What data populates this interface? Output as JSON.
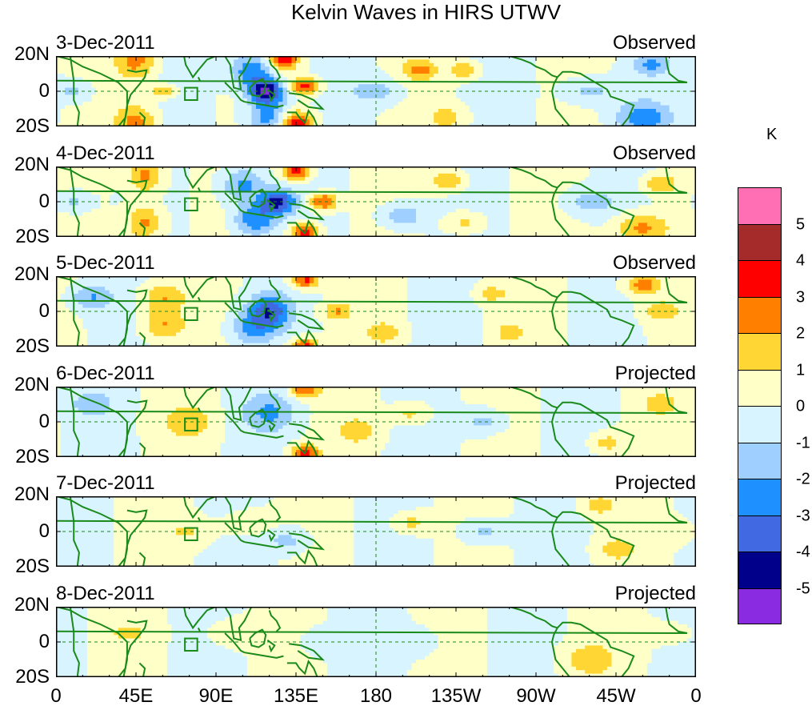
{
  "chart_data": {
    "type": "heatmap",
    "title": "Kelvin Waves in HIRS UTWV",
    "x_tick_labels": [
      "0",
      "45E",
      "90E",
      "135E",
      "180",
      "135W",
      "90W",
      "45W",
      "0"
    ],
    "y_tick_labels": [
      "20N",
      "0",
      "20S"
    ],
    "xlim": [
      0,
      360
    ],
    "ylim": [
      -20,
      20
    ],
    "colorbar": {
      "unit": "K",
      "tick_labels": [
        "5",
        "4",
        "3",
        "2",
        "1",
        "0",
        "-1",
        "-2",
        "-3",
        "-4",
        "-5"
      ],
      "colors": [
        "#ff6fb4",
        "#a52a2a",
        "#ff0000",
        "#ff7f00",
        "#ffd633",
        "#ffffc8",
        "#d8f4ff",
        "#9fcfff",
        "#1e90ff",
        "#4169e1",
        "#00008b",
        "#8a2be2"
      ]
    },
    "panels": [
      {
        "date": "3-Dec-2011",
        "status": "Observed",
        "blobs": [
          [
            45,
            18,
            11,
            2.5,
            1
          ],
          [
            45,
            -18,
            11,
            2.5,
            0.9
          ],
          [
            60,
            0,
            8,
            1.8,
            0.5
          ],
          [
            110,
            12,
            12,
            -3,
            0.8
          ],
          [
            118,
            0,
            10,
            -5,
            0.7
          ],
          [
            120,
            -15,
            12,
            -3,
            0.8
          ],
          [
            128,
            18,
            8,
            4,
            0.7
          ],
          [
            135,
            -18,
            10,
            4,
            0.7
          ],
          [
            140,
            3,
            8,
            3.5,
            0.6
          ],
          [
            180,
            0,
            15,
            -1.5,
            0.5
          ],
          [
            205,
            12,
            10,
            2,
            0.6
          ],
          [
            230,
            12,
            8,
            2,
            0.6
          ],
          [
            220,
            -15,
            10,
            1.5,
            0.6
          ],
          [
            300,
            0,
            15,
            -1.5,
            0.5
          ],
          [
            330,
            -15,
            15,
            -2.5,
            0.6
          ],
          [
            335,
            15,
            10,
            -2,
            0.6
          ],
          [
            10,
            0,
            10,
            -1.5,
            0.6
          ]
        ]
      },
      {
        "date": "4-Dec-2011",
        "status": "Observed",
        "blobs": [
          [
            50,
            15,
            10,
            2.5,
            1
          ],
          [
            50,
            -12,
            10,
            2.5,
            1
          ],
          [
            10,
            0,
            10,
            -1.5,
            0.6
          ],
          [
            105,
            10,
            12,
            -2.5,
            0.8
          ],
          [
            112,
            -10,
            12,
            -3,
            0.8
          ],
          [
            125,
            0,
            10,
            -4,
            0.7
          ],
          [
            135,
            18,
            8,
            4,
            0.7
          ],
          [
            140,
            -18,
            8,
            4,
            0.7
          ],
          [
            150,
            0,
            8,
            3.5,
            0.6
          ],
          [
            195,
            -8,
            12,
            -2,
            0.6
          ],
          [
            220,
            12,
            10,
            2,
            0.6
          ],
          [
            230,
            -12,
            10,
            1.5,
            0.6
          ],
          [
            300,
            0,
            15,
            -1.5,
            0.5
          ],
          [
            330,
            -15,
            15,
            2.5,
            0.6
          ],
          [
            340,
            10,
            10,
            2,
            0.6
          ]
        ]
      },
      {
        "date": "5-Dec-2011",
        "status": "Observed",
        "blobs": [
          [
            20,
            8,
            12,
            -2,
            0.6
          ],
          [
            60,
            8,
            12,
            2,
            0.7
          ],
          [
            60,
            -8,
            12,
            2,
            0.7
          ],
          [
            120,
            0,
            12,
            -3.5,
            0.8
          ],
          [
            110,
            -10,
            12,
            -2,
            0.8
          ],
          [
            140,
            18,
            8,
            3.5,
            0.6
          ],
          [
            140,
            -20,
            8,
            3.5,
            0.6
          ],
          [
            158,
            0,
            8,
            2,
            0.6
          ],
          [
            185,
            -12,
            10,
            1.5,
            0.6
          ],
          [
            245,
            10,
            8,
            1.5,
            0.6
          ],
          [
            255,
            -12,
            8,
            1.5,
            0.6
          ],
          [
            330,
            15,
            10,
            2.5,
            0.6
          ],
          [
            340,
            0,
            10,
            1.5,
            0.6
          ]
        ]
      },
      {
        "date": "6-Dec-2011",
        "status": "Projected",
        "blobs": [
          [
            20,
            10,
            12,
            -1.5,
            0.6
          ],
          [
            75,
            0,
            15,
            1.5,
            0.6
          ],
          [
            120,
            5,
            15,
            -2,
            0.7
          ],
          [
            140,
            18,
            8,
            3,
            0.6
          ],
          [
            140,
            -18,
            8,
            3.5,
            0.6
          ],
          [
            170,
            -5,
            12,
            1.5,
            0.6
          ],
          [
            200,
            5,
            10,
            1.5,
            0.6
          ],
          [
            240,
            0,
            12,
            -1.5,
            0.6
          ],
          [
            310,
            -12,
            10,
            1.5,
            0.6
          ],
          [
            340,
            10,
            10,
            1.5,
            0.6
          ]
        ]
      },
      {
        "date": "7-Dec-2011",
        "status": "Projected",
        "blobs": [
          [
            75,
            0,
            15,
            1,
            0.5
          ],
          [
            110,
            5,
            15,
            1,
            0.5
          ],
          [
            130,
            -5,
            12,
            -1.5,
            0.6
          ],
          [
            200,
            5,
            10,
            1.5,
            0.6
          ],
          [
            240,
            0,
            12,
            -1.5,
            0.6
          ],
          [
            305,
            15,
            10,
            1.5,
            0.6
          ],
          [
            315,
            -10,
            10,
            1.5,
            0.6
          ],
          [
            350,
            0,
            10,
            1,
            0.6
          ]
        ]
      },
      {
        "date": "8-Dec-2011",
        "status": "Projected",
        "blobs": [
          [
            40,
            5,
            12,
            1,
            0.5
          ],
          [
            100,
            5,
            15,
            1,
            0.5
          ],
          [
            150,
            0,
            12,
            -1,
            0.6
          ],
          [
            200,
            0,
            15,
            -1,
            0.5
          ],
          [
            300,
            -10,
            15,
            1.5,
            0.6
          ],
          [
            345,
            5,
            12,
            1,
            0.5
          ]
        ]
      }
    ]
  }
}
